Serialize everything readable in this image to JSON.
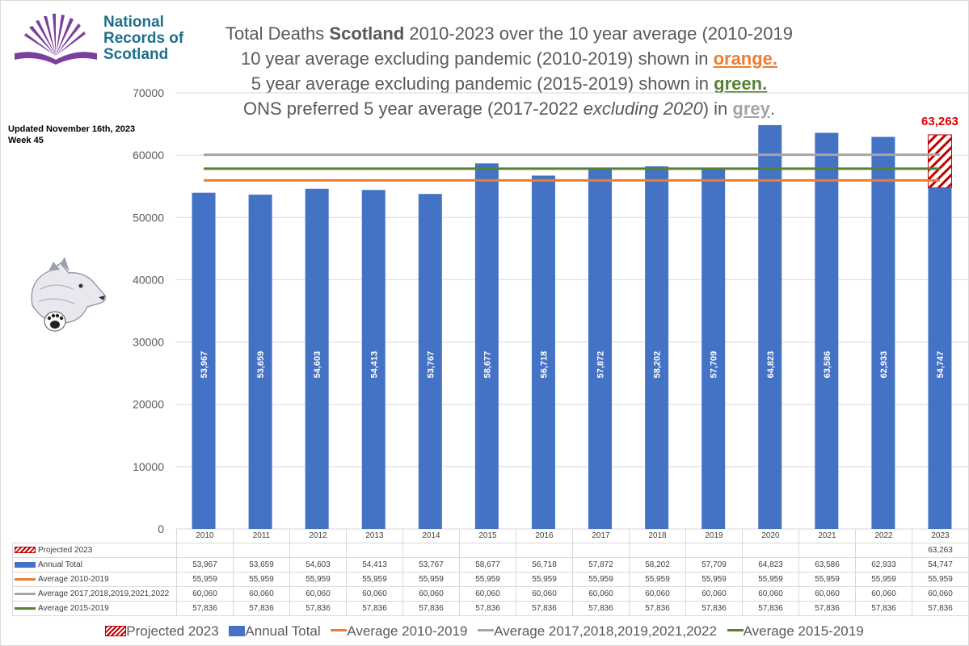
{
  "logo": {
    "line1": "National",
    "line2": "Records of",
    "line3": "Scotland"
  },
  "title": {
    "l1_pre": "Total Deaths ",
    "l1_bold": "Scotland",
    "l1_post": " 2010-2023 over the 10 year average (2010-2019",
    "l2_pre": "10 year average excluding pandemic (2010-2019) shown in ",
    "l2_color": "orange.",
    "l3_pre": "5 year average excluding pandemic (2015-2019) shown in ",
    "l3_color": "green.",
    "l4_pre": "ONS preferred 5 year average (2017-2022 ",
    "l4_italic": "excluding 2020",
    "l4_mid": ") in ",
    "l4_color": "grey",
    "l4_post": "."
  },
  "updated": {
    "line1": "Updated November 16th, 2023",
    "line2": "Week 45"
  },
  "chart_data": {
    "type": "bar",
    "categories": [
      "2010",
      "2011",
      "2012",
      "2013",
      "2014",
      "2015",
      "2016",
      "2017",
      "2018",
      "2019",
      "2020",
      "2021",
      "2022",
      "2023"
    ],
    "ylim": [
      0,
      70000
    ],
    "yticks": [
      "0",
      "10000",
      "20000",
      "30000",
      "40000",
      "50000",
      "60000",
      "70000"
    ],
    "ytick_values": [
      0,
      10000,
      20000,
      30000,
      40000,
      50000,
      60000,
      70000
    ],
    "projected_value": 63263,
    "projected_label": "63,263",
    "series": [
      {
        "name": "Projected 2023",
        "kind": "hatched-bar",
        "values": [
          null,
          null,
          null,
          null,
          null,
          null,
          null,
          null,
          null,
          null,
          null,
          null,
          null,
          63263
        ],
        "labels": [
          "",
          "",
          "",
          "",
          "",
          "",
          "",
          "",
          "",
          "",
          "",
          "",
          "",
          "63,263"
        ],
        "color": "#c00000"
      },
      {
        "name": "Annual Total",
        "kind": "bar",
        "values": [
          53967,
          53659,
          54603,
          54413,
          53767,
          58677,
          56718,
          57872,
          58202,
          57709,
          64823,
          63586,
          62933,
          54747
        ],
        "labels": [
          "53,967",
          "53,659",
          "54,603",
          "54,413",
          "53,767",
          "58,677",
          "56,718",
          "57,872",
          "58,202",
          "57,709",
          "64,823",
          "63,586",
          "62,933",
          "54,747"
        ],
        "color": "#4472c4"
      },
      {
        "name": "Average 2010-2019",
        "kind": "line",
        "values": [
          55959,
          55959,
          55959,
          55959,
          55959,
          55959,
          55959,
          55959,
          55959,
          55959,
          55959,
          55959,
          55959,
          55959
        ],
        "labels": [
          "55,959",
          "55,959",
          "55,959",
          "55,959",
          "55,959",
          "55,959",
          "55,959",
          "55,959",
          "55,959",
          "55,959",
          "55,959",
          "55,959",
          "55,959",
          "55,959"
        ],
        "color": "#ed7d31"
      },
      {
        "name": "Average 2017,2018,2019,2021,2022",
        "kind": "line",
        "values": [
          60060,
          60060,
          60060,
          60060,
          60060,
          60060,
          60060,
          60060,
          60060,
          60060,
          60060,
          60060,
          60060,
          60060
        ],
        "labels": [
          "60,060",
          "60,060",
          "60,060",
          "60,060",
          "60,060",
          "60,060",
          "60,060",
          "60,060",
          "60,060",
          "60,060",
          "60,060",
          "60,060",
          "60,060",
          "60,060"
        ],
        "color": "#a5a5a5"
      },
      {
        "name": "Average 2015-2019",
        "kind": "line",
        "values": [
          57836,
          57836,
          57836,
          57836,
          57836,
          57836,
          57836,
          57836,
          57836,
          57836,
          57836,
          57836,
          57836,
          57836
        ],
        "labels": [
          "57,836",
          "57,836",
          "57,836",
          "57,836",
          "57,836",
          "57,836",
          "57,836",
          "57,836",
          "57,836",
          "57,836",
          "57,836",
          "57,836",
          "57,836",
          "57,836"
        ],
        "color": "#548235"
      }
    ],
    "legend": "bottom",
    "grid": true
  }
}
